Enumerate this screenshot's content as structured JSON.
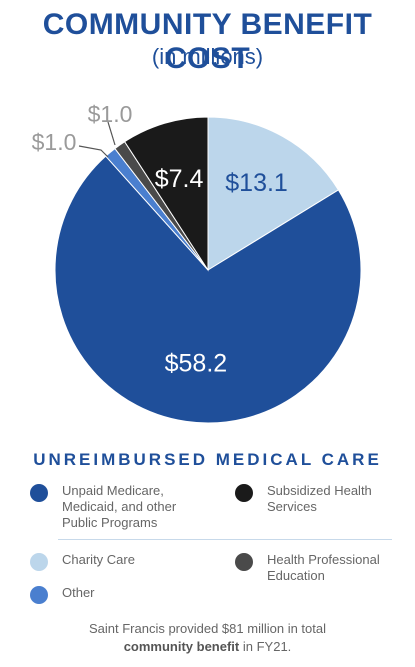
{
  "header": {
    "title": "COMMUNITY BENEFIT COST",
    "subtitle": "(in millions)"
  },
  "chart_data": {
    "type": "pie",
    "title": "COMMUNITY BENEFIT COST",
    "subtitle": "(in millions)",
    "slices": [
      {
        "label": "Charity Care",
        "value": 13.1,
        "display": "$13.1",
        "color": "#bcd6eb"
      },
      {
        "label": "Unpaid Medicare, Medicaid, and other Public Programs",
        "value": 58.2,
        "display": "$58.2",
        "color": "#1f4f9a"
      },
      {
        "label": "Other",
        "value": 1.0,
        "display": "$1.0",
        "color": "#4a7fcf"
      },
      {
        "label": "Health Professional Education",
        "value": 1.0,
        "display": "$1.0",
        "color": "#4a4a4a"
      },
      {
        "label": "Subsidized Health Services",
        "value": 7.4,
        "display": "$7.4",
        "color": "#1a1a1a"
      }
    ]
  },
  "legend": {
    "title": "UNREIMBURSED MEDICAL CARE",
    "items": [
      {
        "label": "Unpaid Medicare,\nMedicaid, and other\nPublic Programs",
        "color": "#1f4f9a"
      },
      {
        "label": "Subsidized Health\nServices",
        "color": "#1a1a1a"
      },
      {
        "label": "Charity Care",
        "color": "#bcd6eb"
      },
      {
        "label": "Health Professional\nEducation",
        "color": "#4a4a4a"
      },
      {
        "label": "Other",
        "color": "#4a7fcf"
      }
    ]
  },
  "footnote": {
    "line1": "Saint Francis provided $81 million in total",
    "bold": "community benefit",
    "line2_end": " in FY21."
  }
}
